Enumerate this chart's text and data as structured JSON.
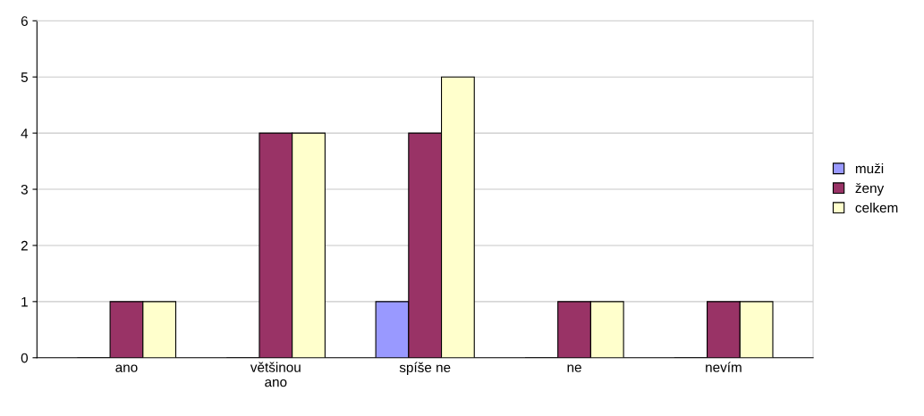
{
  "chart_data": {
    "type": "bar",
    "categories": [
      "ano",
      "většinou\nano",
      "spíše ne",
      "ne",
      "nevím"
    ],
    "series": [
      {
        "name": "muži",
        "color": "#9999ff",
        "values": [
          0,
          0,
          1,
          0,
          0
        ]
      },
      {
        "name": "ženy",
        "color": "#993366",
        "values": [
          1,
          4,
          4,
          1,
          1
        ]
      },
      {
        "name": "celkem",
        "color": "#ffffcc",
        "values": [
          1,
          4,
          5,
          1,
          1
        ]
      }
    ],
    "ylim": [
      0,
      6
    ],
    "yticks": [
      0,
      1,
      2,
      3,
      4,
      5,
      6
    ],
    "grid": "y",
    "legend": "right"
  }
}
